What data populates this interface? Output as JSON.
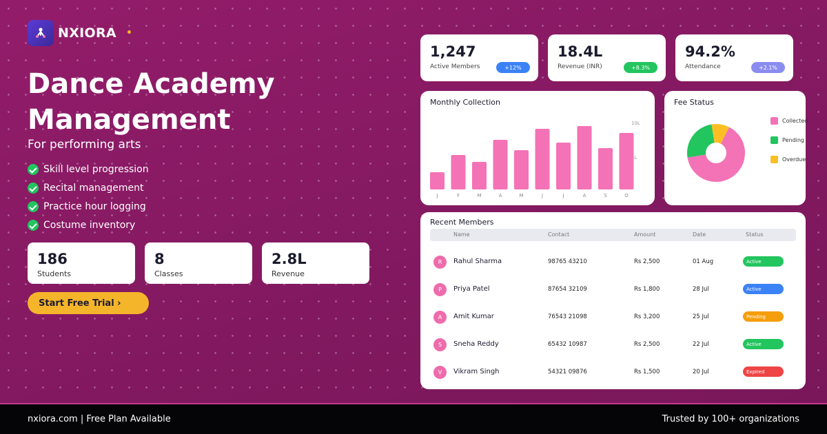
{
  "brand": {
    "name": "NXIORA"
  },
  "hero": {
    "title_line1": "Dance Academy",
    "title_line2": "Management",
    "subtitle": "For performing arts",
    "features": [
      "Skill level progression",
      "Recital management",
      "Practice hour logging",
      "Costume inventory"
    ],
    "cta_label": "Start Free Trial  ›"
  },
  "stats": [
    {
      "value": "186",
      "label": "Students"
    },
    {
      "value": "8",
      "label": "Classes"
    },
    {
      "value": "2.8L",
      "label": "Revenue"
    }
  ],
  "kpis": [
    {
      "value": "1,247",
      "label": "Active Members",
      "badge": "+12%",
      "badge_color": "#3b82f6"
    },
    {
      "value": "18.4L",
      "label": "Revenue (INR)",
      "badge": "+8.3%",
      "badge_color": "#22c55e"
    },
    {
      "value": "94.2%",
      "label": "Attendance",
      "badge": "+2.1%",
      "badge_color": "#8b8cf0"
    }
  ],
  "monthly_chart": {
    "title": "Monthly Collection",
    "ymax_label": "10L",
    "ymid_label": "5L",
    "bar_color": "#f472b6"
  },
  "fee_chart": {
    "title": "Fee Status",
    "legend": [
      {
        "label": "Collected",
        "color": "#f472b6"
      },
      {
        "label": "Pending",
        "color": "#22c55e"
      },
      {
        "label": "Overdue",
        "color": "#fbbf24"
      }
    ]
  },
  "members": {
    "title": "Recent Members",
    "columns": [
      "Name",
      "Contact",
      "Amount",
      "Date",
      "Status"
    ],
    "rows": [
      {
        "initial": "R",
        "name": "Rahul Sharma",
        "contact": "98765 43210",
        "amount": "Rs 2,500",
        "date": "01 Aug",
        "status": "Active",
        "status_color": "#22c55e"
      },
      {
        "initial": "P",
        "name": "Priya Patel",
        "contact": "87654 32109",
        "amount": "Rs 1,800",
        "date": "28 Jul",
        "status": "Active",
        "status_color": "#3b82f6"
      },
      {
        "initial": "A",
        "name": "Amit Kumar",
        "contact": "76543 21098",
        "amount": "Rs 3,200",
        "date": "25 Jul",
        "status": "Pending",
        "status_color": "#f59e0b"
      },
      {
        "initial": "S",
        "name": "Sneha Reddy",
        "contact": "65432 10987",
        "amount": "Rs 2,500",
        "date": "22 Jul",
        "status": "Active",
        "status_color": "#22c55e"
      },
      {
        "initial": "V",
        "name": "Vikram Singh",
        "contact": "54321 09876",
        "amount": "Rs 1,500",
        "date": "20 Jul",
        "status": "Expired",
        "status_color": "#ef4444"
      }
    ]
  },
  "footer": {
    "left": "nxiora.com  |  Free Plan Available",
    "right": "Trusted by 100+ organizations"
  },
  "chart_data": [
    {
      "type": "bar",
      "title": "Monthly Collection",
      "categories": [
        "J",
        "F",
        "M",
        "A",
        "M",
        "J",
        "J",
        "A",
        "S",
        "O"
      ],
      "values": [
        2.5,
        5,
        4,
        7.2,
        5.7,
        8.8,
        6.8,
        9.2,
        6,
        8.2
      ],
      "ylim": [
        0,
        10
      ]
    },
    {
      "type": "pie",
      "title": "Fee Status",
      "labels": [
        "Collected",
        "Pending",
        "Overdue"
      ],
      "values": [
        65,
        25,
        10
      ]
    }
  ]
}
